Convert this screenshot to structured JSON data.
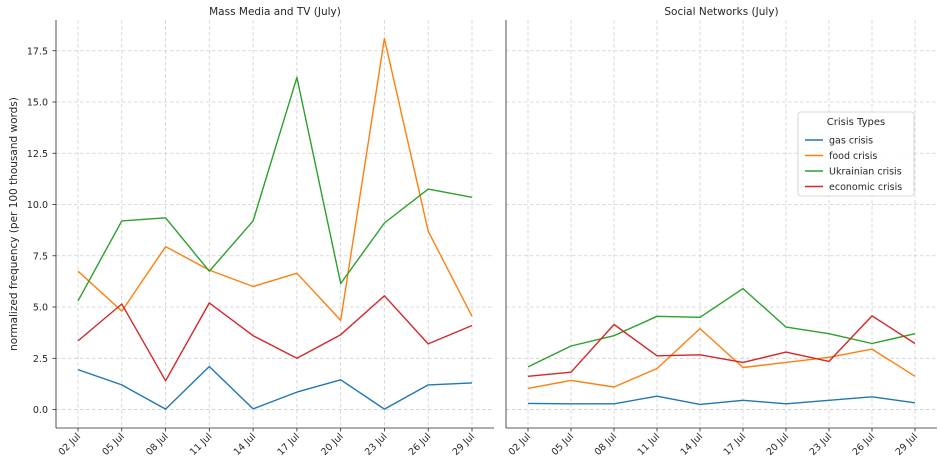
{
  "ylabel": "normalized frequency (per 100 thousand words)",
  "legend": {
    "title": "Crisis Types"
  },
  "chart_data": [
    {
      "type": "line",
      "title": "Mass Media and TV (July)",
      "categories": [
        "02 Jul",
        "05 Jul",
        "08 Jul",
        "11 Jul",
        "14 Jul",
        "17 Jul",
        "20 Jul",
        "23 Jul",
        "26 Jul",
        "29 Jul"
      ],
      "ylabel": "normalized frequency (per 100 thousand words)",
      "ylim": [
        -0.9,
        19.0
      ],
      "yticks": [
        0.0,
        2.5,
        5.0,
        7.5,
        10.0,
        12.5,
        15.0,
        17.5
      ],
      "ytick_labels": [
        "0.0",
        "2.5",
        "5.0",
        "7.5",
        "10.0",
        "12.5",
        "15.0",
        "17.5"
      ],
      "grid": true,
      "series": [
        {
          "name": "gas crisis",
          "color": "#1f77b4",
          "values": [
            1.95,
            1.2,
            0.02,
            2.1,
            0.03,
            0.85,
            1.45,
            0.02,
            1.2,
            1.3
          ]
        },
        {
          "name": "food crisis",
          "color": "#ff7f0e",
          "values": [
            6.75,
            4.8,
            7.95,
            6.8,
            6.0,
            6.65,
            4.35,
            18.1,
            8.7,
            4.55
          ]
        },
        {
          "name": "Ukrainian crisis",
          "color": "#2ca02c",
          "values": [
            5.3,
            9.2,
            9.35,
            6.75,
            9.2,
            16.2,
            6.15,
            9.1,
            10.75,
            10.35
          ]
        },
        {
          "name": "economic crisis",
          "color": "#d62728",
          "values": [
            3.35,
            5.15,
            1.4,
            5.2,
            3.6,
            2.5,
            3.65,
            5.55,
            3.2,
            4.1
          ]
        }
      ]
    },
    {
      "type": "line",
      "title": "Social Networks (July)",
      "categories": [
        "02 Jul",
        "05 Jul",
        "08 Jul",
        "11 Jul",
        "14 Jul",
        "17 Jul",
        "20 Jul",
        "23 Jul",
        "26 Jul",
        "29 Jul"
      ],
      "ylim": [
        -0.9,
        19.0
      ],
      "grid": true,
      "legend_position": "upper-right",
      "series": [
        {
          "name": "gas crisis",
          "color": "#1f77b4",
          "values": [
            0.3,
            0.28,
            0.28,
            0.65,
            0.25,
            0.45,
            0.28,
            0.45,
            0.62,
            0.33
          ]
        },
        {
          "name": "food crisis",
          "color": "#ff7f0e",
          "values": [
            1.03,
            1.42,
            1.1,
            2.0,
            3.95,
            2.05,
            2.3,
            2.55,
            2.95,
            1.62
          ]
        },
        {
          "name": "Ukrainian crisis",
          "color": "#2ca02c",
          "values": [
            2.08,
            3.1,
            3.6,
            4.55,
            4.5,
            5.9,
            4.02,
            3.7,
            3.22,
            3.7
          ]
        },
        {
          "name": "economic crisis",
          "color": "#d62728",
          "values": [
            1.62,
            1.82,
            4.15,
            2.62,
            2.67,
            2.3,
            2.8,
            2.35,
            4.57,
            3.22
          ]
        }
      ]
    }
  ]
}
